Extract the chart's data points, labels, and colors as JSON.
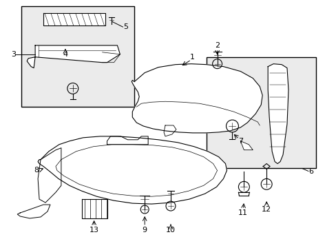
{
  "bg_color": "#ffffff",
  "box_fill": "#ebebeb",
  "line_color": "#000000",
  "fontsize": 8,
  "figsize": [
    4.89,
    3.6
  ],
  "dpi": 100,
  "xlim": [
    0,
    489
  ],
  "ylim": [
    0,
    360
  ]
}
